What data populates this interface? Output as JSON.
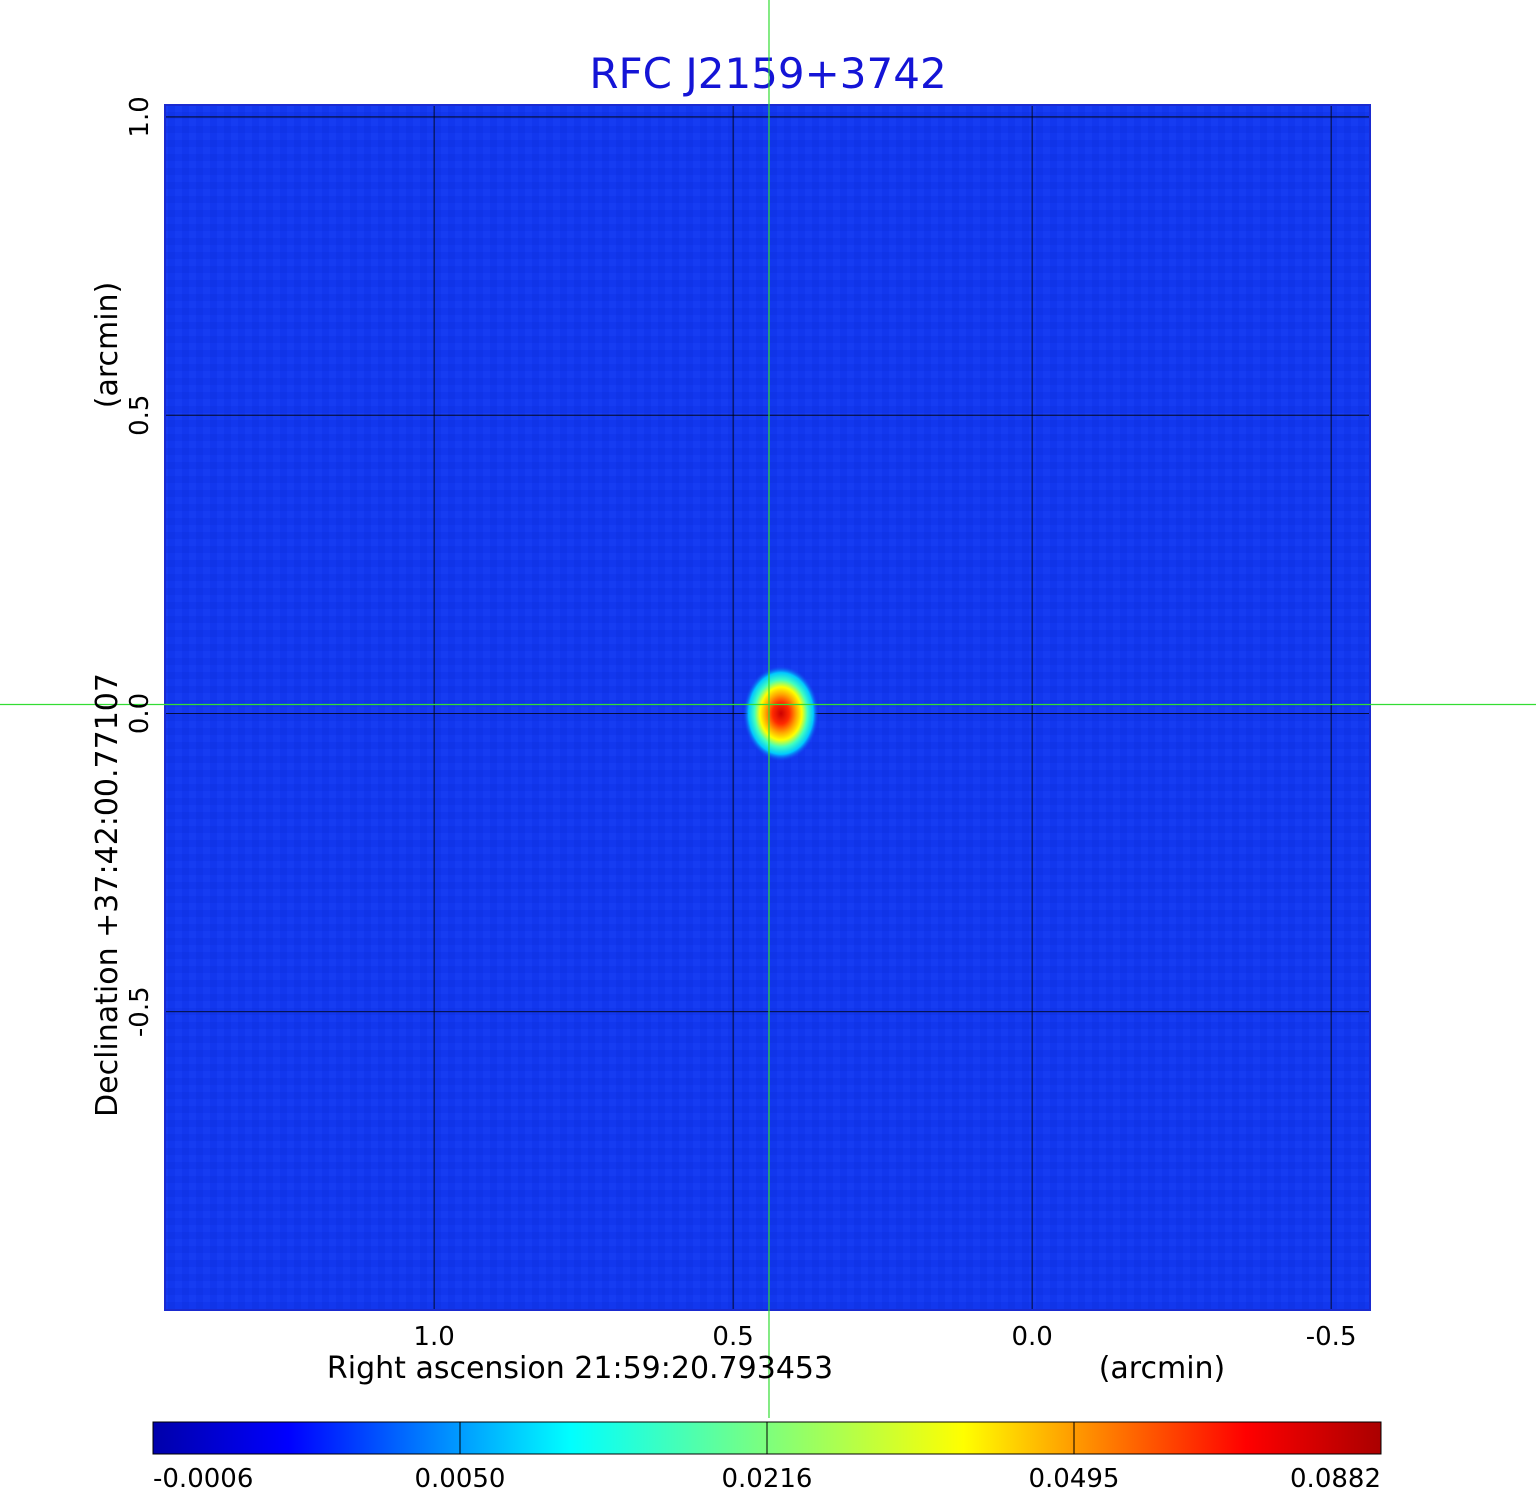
{
  "chart_data": {
    "type": "heatmap",
    "title": "RFC J2159+3742",
    "xlabel": "Right ascension  21:59:20.793453",
    "xlabel_unit": "(arcmin)",
    "ylabel": "Declination  +37:42:00.77107",
    "ylabel_unit": "(arcmin)",
    "x_axis": {
      "direction": "decreasing-left-to-right",
      "range": [
        1.45,
        -0.565
      ],
      "ticks": [
        1.0,
        0.5,
        0.0,
        -0.5
      ],
      "tick_labels": [
        "1.0",
        "0.5",
        "0.0",
        "-0.5"
      ]
    },
    "y_axis": {
      "range": [
        -1.0,
        1.02
      ],
      "ticks": [
        1.0,
        0.5,
        0.0,
        -0.5
      ],
      "tick_labels": [
        "1.0",
        "0.5",
        "0.0",
        "-0.5"
      ]
    },
    "grid": true,
    "colormap": "jet",
    "colorbar": {
      "ticks": [
        "-0.0006",
        "0.0050",
        "0.0216",
        "0.0495",
        "0.0882"
      ],
      "range": [
        -0.0006,
        0.0882
      ],
      "placement": "bottom"
    },
    "source": {
      "x": 0.42,
      "y": 0.0,
      "peak": 0.0882
    },
    "crosshair": {
      "x": 0.44,
      "y": 0.015,
      "color": "#33dd33"
    },
    "background_level": 0.001,
    "colors": {
      "title": "#1414d6",
      "background_map": "#1237ee",
      "crosshair": "#33dd33"
    }
  }
}
